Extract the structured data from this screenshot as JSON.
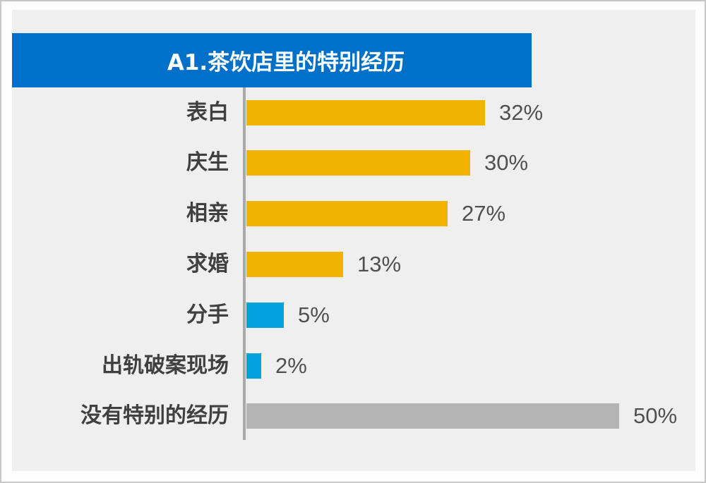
{
  "chart_data": {
    "type": "bar",
    "orientation": "horizontal",
    "title": "A1.茶饮店里的特别经历",
    "categories": [
      "表白",
      "庆生",
      "相亲",
      "求婚",
      "分手",
      "出轨破案现场",
      "没有特别的经历"
    ],
    "values": [
      32,
      30,
      27,
      13,
      5,
      2,
      50
    ],
    "value_labels": [
      "32%",
      "30%",
      "27%",
      "13%",
      "5%",
      "2%",
      "50%"
    ],
    "unit": "%",
    "bar_colors": [
      "#F0B400",
      "#F0B400",
      "#F0B400",
      "#F0B400",
      "#00A3E0",
      "#00A3E0",
      "#B4B4B4"
    ],
    "xlabel": "",
    "ylabel": "",
    "grid": false,
    "legend": null
  },
  "colors": {
    "title_bg": "#0070C8",
    "title_text": "#FFFFFF",
    "panel_bg": "#F0EFEF",
    "axis": "#A9A9A9",
    "label_text": "#404040",
    "value_text": "#505050"
  }
}
